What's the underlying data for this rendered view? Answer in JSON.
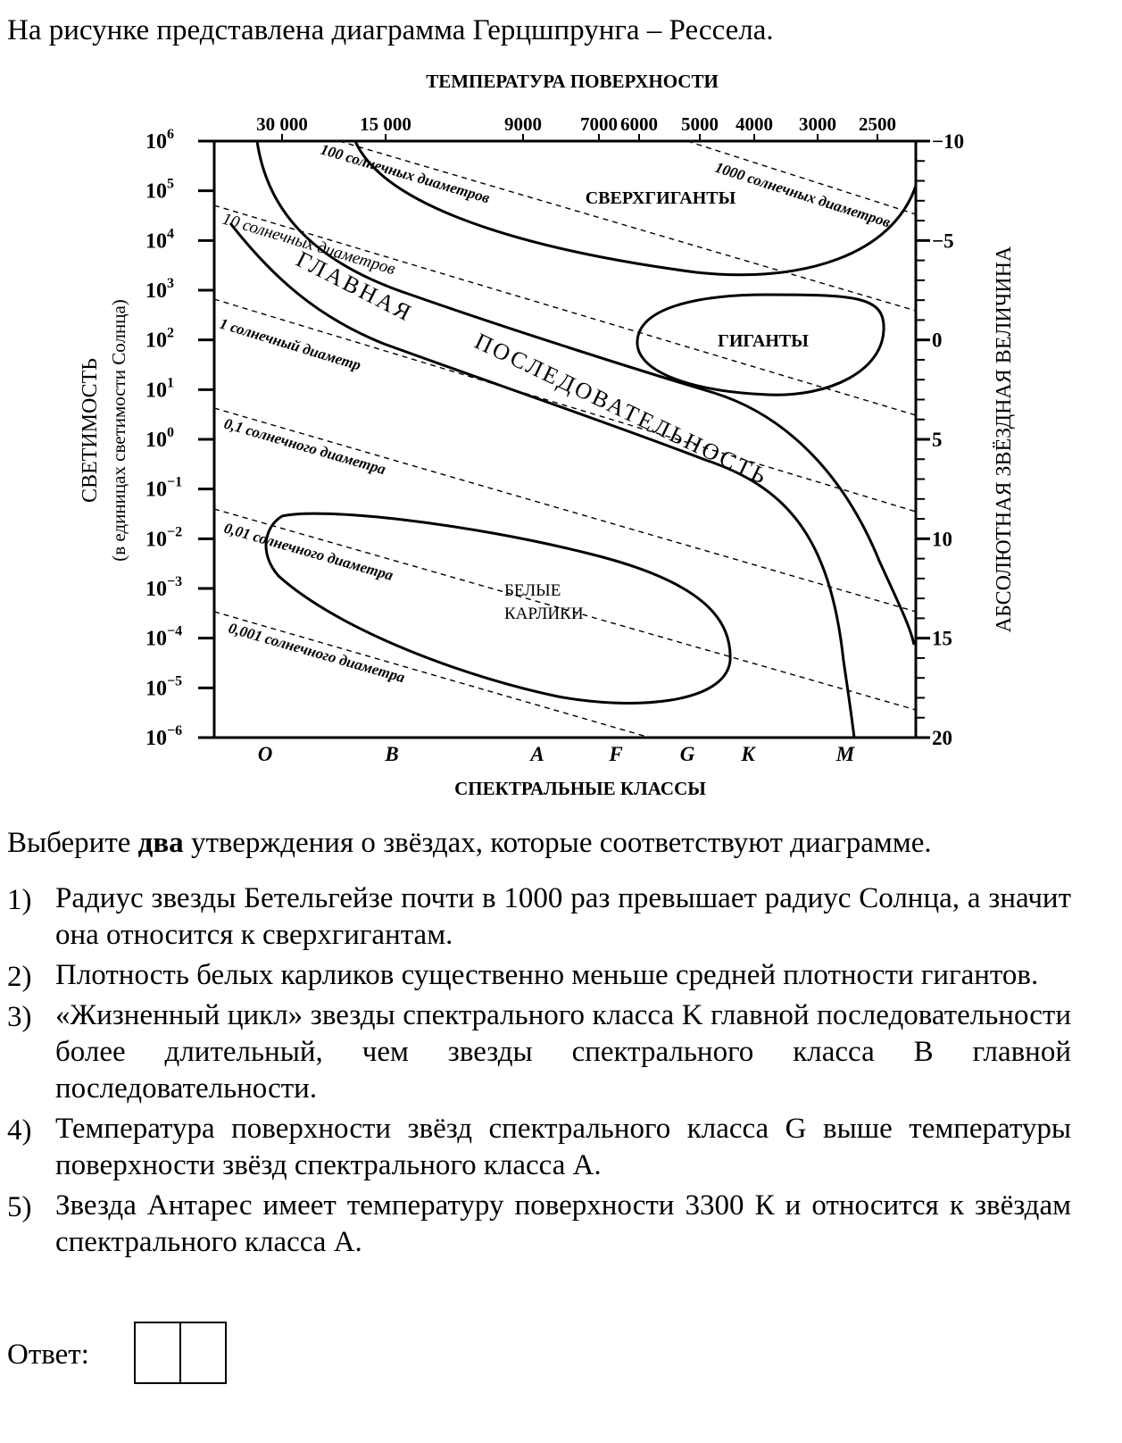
{
  "intro": "На рисунке представлена диаграмма Герцшпрунга – Рессела.",
  "diagram": {
    "top_axis_title": "ТЕМПЕРАТУРА ПОВЕРХНОСТИ",
    "top_ticks": [
      "30 000",
      "15 000",
      "9000",
      "7000",
      "6000",
      "5000",
      "4000",
      "3000",
      "2500"
    ],
    "luminosity_ticks": [
      {
        "base": "10",
        "exp": "6"
      },
      {
        "base": "10",
        "exp": "5"
      },
      {
        "base": "10",
        "exp": "4"
      },
      {
        "base": "10",
        "exp": "3"
      },
      {
        "base": "10",
        "exp": "2"
      },
      {
        "base": "10",
        "exp": "1"
      },
      {
        "base": "10",
        "exp": "0"
      },
      {
        "base": "10",
        "exp": "−1"
      },
      {
        "base": "10",
        "exp": "−2"
      },
      {
        "base": "10",
        "exp": "−3"
      },
      {
        "base": "10",
        "exp": "−4"
      },
      {
        "base": "10",
        "exp": "−5"
      },
      {
        "base": "10",
        "exp": "−6"
      }
    ],
    "magnitude_ticks": [
      "−10",
      "−5",
      "0",
      "5",
      "10",
      "15",
      "20"
    ],
    "spectral_classes": [
      "O",
      "B",
      "A",
      "F",
      "G",
      "K",
      "M"
    ],
    "bottom_axis_title": "СПЕКТРАЛЬНЫЕ КЛАССЫ",
    "left_axis_title": "СВЕТИМОСТЬ",
    "left_axis_subtitle": "(в единицах светимости Солнца)",
    "right_axis_title": "АБСОЛЮТНАЯ ЗВЁЗДНАЯ ВЕЛИЧИНА",
    "radius_labels": {
      "d1000": "1000 солнечных диаметров",
      "d100": "100 солнечных диаметров",
      "d10": "10 солнечных диаметров",
      "d1": "1 солнечный диаметр",
      "d01": "0,1 солнечного диаметра",
      "d001": "0,01 солнечного диаметра",
      "d0001": "0,001 солнечного диаметра"
    },
    "regions": {
      "supergiants": "СВЕРХГИГАНТЫ",
      "giants": "ГИГАНТЫ",
      "main_sequence_1": "ГЛАВНАЯ",
      "main_sequence_2": "ПОСЛЕДОВАТЕЛЬНОСТЬ",
      "white_dwarfs_1": "БЕЛЫЕ",
      "white_dwarfs_2": "КАРЛИКИ"
    }
  },
  "task": {
    "before": "Выберите ",
    "bold": "два",
    "after": " утверждения о звёздах, которые соответствуют диаграмме."
  },
  "options": [
    {
      "num": "1)",
      "text": "Радиус звезды Бетельгейзе почти в 1000 раз превышает радиус Солнца, а значит она относится к сверхгигантам."
    },
    {
      "num": "2)",
      "text": "Плотность белых карликов существенно меньше средней плотности гигантов."
    },
    {
      "num": "3)",
      "text": "«Жизненный цикл» звезды спектрального класса K главной последовательности более длительный, чем звезды спектрального класса B главной последовательности."
    },
    {
      "num": "4)",
      "text": "Температура поверхности звёзд спектрального класса G выше температуры поверхности звёзд спектрального класса A."
    },
    {
      "num": "5)",
      "text": "Звезда Антарес имеет температуру поверхности 3300 К и относится к звёздам спектрального класса A."
    }
  ],
  "answer": {
    "label": "Ответ:"
  }
}
